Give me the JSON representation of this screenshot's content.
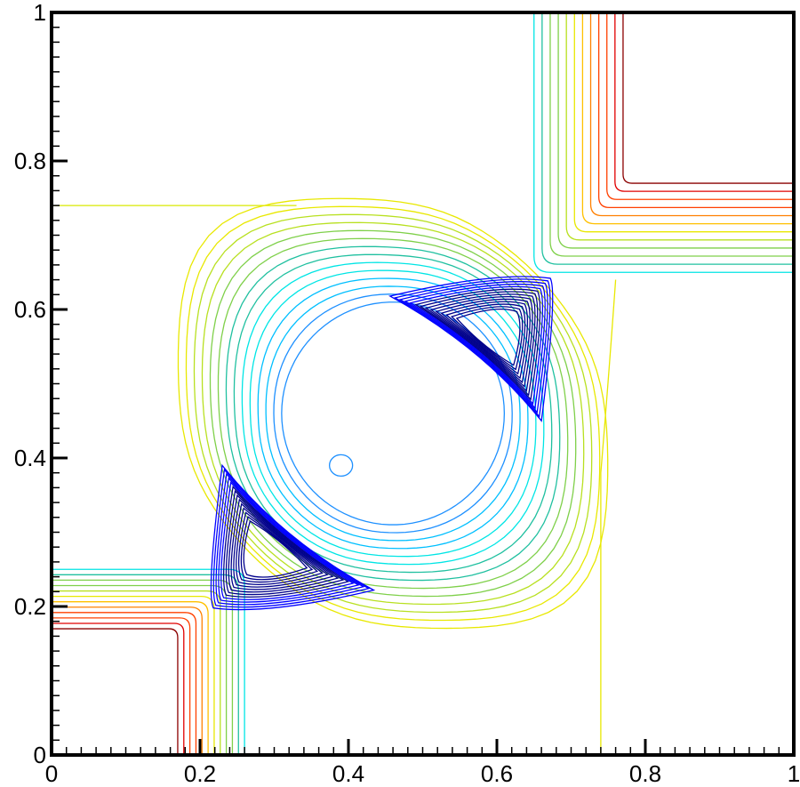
{
  "chart_data": {
    "type": "contour",
    "title": "",
    "xlabel": "",
    "ylabel": "",
    "xlim": [
      0,
      1
    ],
    "ylim": [
      0,
      1
    ],
    "x_ticks": [
      "0",
      "0.2",
      "0.4",
      "0.6",
      "0.8",
      "1"
    ],
    "y_ticks": [
      "0",
      "0.2",
      "0.4",
      "0.6",
      "0.8",
      "1"
    ],
    "grid": false,
    "legend": "none",
    "colormap": [
      "#00008b",
      "#0000ff",
      "#1e90ff",
      "#00bfff",
      "#00e5e5",
      "#20c0a0",
      "#7fd04a",
      "#b8e020",
      "#e8e800",
      "#ffc000",
      "#ff8000",
      "#ff4000",
      "#e00000",
      "#8b0000"
    ],
    "features": {
      "saddle_points": [
        [
          0.2,
          0.2
        ],
        [
          0.74,
          0.74
        ]
      ],
      "minima": [
        [
          0.29,
          0.27
        ],
        [
          0.6,
          0.57
        ]
      ],
      "center_blob": [
        0.39,
        0.39
      ],
      "bands_lower_left": {
        "x_from": 0.17,
        "x_to": 0.26,
        "y_from": 0.17,
        "y_to": 0.25
      },
      "bands_upper_right": {
        "x_from": 0.65,
        "x_to": 0.77,
        "y_from": 0.65,
        "y_to": 0.77
      }
    }
  }
}
